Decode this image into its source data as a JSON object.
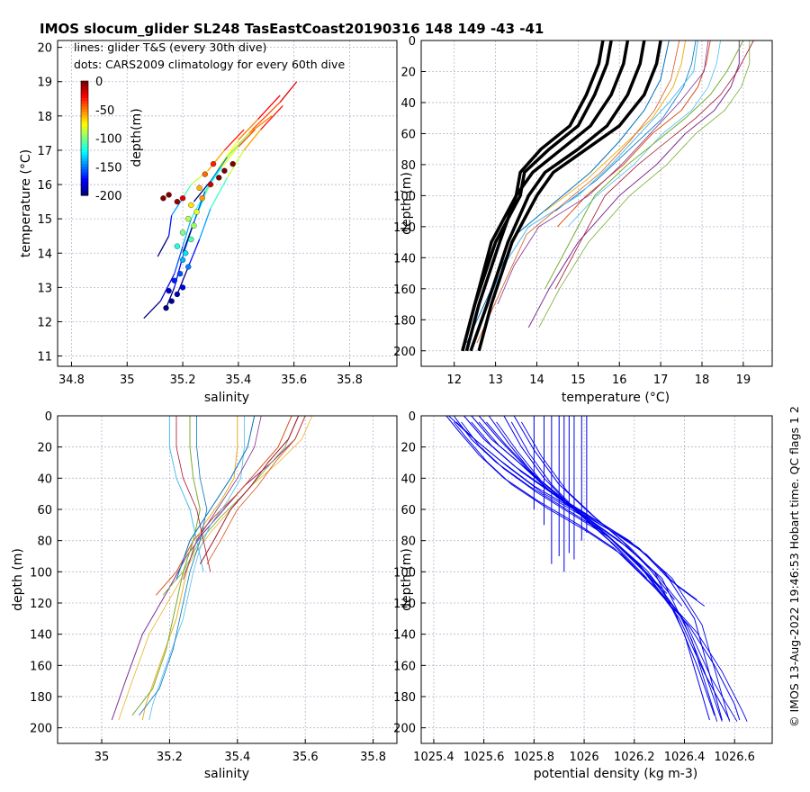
{
  "figure": {
    "title": "IMOS slocum_glider SL248 TasEastCoast20190316 148  149  -43  -41",
    "credit": "© IMOS 13-Aug-2022 19:46:53 Hobart time. QC flags 1  2"
  },
  "chart_data": [
    {
      "id": "ts",
      "type": "line+scatter",
      "xlabel": "salinity",
      "ylabel": "temperature (°C)",
      "xlim": [
        34.75,
        35.97
      ],
      "ylim": [
        10.7,
        20.2
      ],
      "xticks": [
        34.8,
        35,
        35.2,
        35.4,
        35.6,
        35.8
      ],
      "yticks": [
        11,
        12,
        13,
        14,
        15,
        16,
        17,
        18,
        19,
        20
      ],
      "grid": true,
      "annotations": [
        "lines: glider T&S (every 30th dive)",
        "dots: CARS2009 climatology for every 60th dive"
      ],
      "colorbar": {
        "label": "depth(m)",
        "ticks": [
          0,
          -50,
          -100,
          -150,
          -200
        ],
        "range": [
          -200,
          0
        ],
        "colormap": "jet",
        "placement": "upper-left inset"
      },
      "glider_lines": [
        {
          "s": [
            35.06,
            35.12,
            35.17,
            35.2,
            35.23,
            35.27,
            35.31,
            35.37,
            35.45,
            35.55,
            35.61
          ],
          "t": [
            12.1,
            12.6,
            13.4,
            14.2,
            15.0,
            15.6,
            16.2,
            16.9,
            17.6,
            18.4,
            19.0
          ]
        },
        {
          "s": [
            35.14,
            35.17,
            35.2,
            35.24,
            35.28,
            35.33,
            35.4,
            35.47,
            35.55
          ],
          "t": [
            12.4,
            13.0,
            13.9,
            14.9,
            15.7,
            16.5,
            17.3,
            17.9,
            18.6
          ]
        },
        {
          "s": [
            35.11,
            35.15,
            35.16,
            35.2,
            35.23,
            35.29,
            35.35,
            35.42
          ],
          "t": [
            13.9,
            14.5,
            15.1,
            15.6,
            16.0,
            16.4,
            17.0,
            17.6
          ]
        },
        {
          "s": [
            35.18,
            35.22,
            35.26,
            35.3,
            35.36,
            35.42,
            35.48,
            35.56
          ],
          "t": [
            12.8,
            13.6,
            14.4,
            15.3,
            16.2,
            17.0,
            17.6,
            18.3
          ]
        },
        {
          "s": [
            35.2,
            35.24,
            35.28,
            35.34,
            35.4,
            35.46
          ],
          "t": [
            14.0,
            14.9,
            15.8,
            16.5,
            17.1,
            17.6
          ]
        },
        {
          "s": [
            35.24,
            35.3,
            35.36,
            35.44,
            35.52
          ],
          "t": [
            15.5,
            16.1,
            16.8,
            17.5,
            18.0
          ]
        }
      ],
      "cars_dots": [
        {
          "s": 35.14,
          "t": 12.4,
          "d": -200
        },
        {
          "s": 35.16,
          "t": 12.6,
          "d": -195
        },
        {
          "s": 35.18,
          "t": 12.8,
          "d": -190
        },
        {
          "s": 35.15,
          "t": 12.9,
          "d": -185
        },
        {
          "s": 35.2,
          "t": 13.0,
          "d": -180
        },
        {
          "s": 35.17,
          "t": 13.2,
          "d": -170
        },
        {
          "s": 35.19,
          "t": 13.4,
          "d": -160
        },
        {
          "s": 35.22,
          "t": 13.6,
          "d": -150
        },
        {
          "s": 35.2,
          "t": 13.8,
          "d": -140
        },
        {
          "s": 35.21,
          "t": 14.0,
          "d": -130
        },
        {
          "s": 35.18,
          "t": 14.2,
          "d": -120
        },
        {
          "s": 35.23,
          "t": 14.4,
          "d": -110
        },
        {
          "s": 35.2,
          "t": 14.6,
          "d": -100
        },
        {
          "s": 35.24,
          "t": 14.8,
          "d": -95
        },
        {
          "s": 35.22,
          "t": 15.0,
          "d": -90
        },
        {
          "s": 35.25,
          "t": 15.2,
          "d": -80
        },
        {
          "s": 35.23,
          "t": 15.4,
          "d": -70
        },
        {
          "s": 35.27,
          "t": 15.6,
          "d": -55
        },
        {
          "s": 35.2,
          "t": 15.6,
          "d": -20
        },
        {
          "s": 35.15,
          "t": 15.7,
          "d": 0
        },
        {
          "s": 35.13,
          "t": 15.6,
          "d": 0
        },
        {
          "s": 35.18,
          "t": 15.5,
          "d": -5
        },
        {
          "s": 35.3,
          "t": 16.0,
          "d": -15
        },
        {
          "s": 35.33,
          "t": 16.2,
          "d": 0
        },
        {
          "s": 35.35,
          "t": 16.4,
          "d": 0
        },
        {
          "s": 35.38,
          "t": 16.6,
          "d": 0
        },
        {
          "s": 35.31,
          "t": 16.6,
          "d": -30
        },
        {
          "s": 35.28,
          "t": 16.3,
          "d": -45
        },
        {
          "s": 35.26,
          "t": 15.9,
          "d": -60
        }
      ]
    },
    {
      "id": "temp-depth",
      "type": "line",
      "xlabel": "temperature (°C)",
      "ylabel": "depth (m)",
      "xlim": [
        11.2,
        19.7
      ],
      "ylim": [
        0,
        210
      ],
      "y_reversed": true,
      "xticks": [
        12,
        13,
        14,
        15,
        16,
        17,
        18,
        19
      ],
      "yticks": [
        0,
        20,
        40,
        60,
        80,
        100,
        120,
        140,
        160,
        180,
        200
      ],
      "grid": true,
      "glider_profiles": [
        {
          "t": [
            18.9,
            18.9,
            18.7,
            18.3,
            17.6,
            16.9,
            16.0,
            15.0,
            14.3,
            13.8
          ],
          "d": [
            0,
            15,
            30,
            45,
            60,
            80,
            100,
            130,
            160,
            185
          ]
        },
        {
          "t": [
            18.2,
            18.1,
            17.9,
            17.5,
            16.8,
            16.1,
            15.2,
            14.5
          ],
          "d": [
            0,
            15,
            30,
            45,
            60,
            80,
            100,
            120
          ]
        },
        {
          "t": [
            17.6,
            17.5,
            17.3,
            16.8,
            16.0,
            15.2,
            14.2
          ],
          "d": [
            0,
            15,
            30,
            50,
            70,
            90,
            110
          ]
        },
        {
          "t": [
            19.0,
            18.6,
            18.2,
            17.6,
            16.9,
            16.2,
            15.4,
            14.8,
            14.2
          ],
          "d": [
            0,
            20,
            35,
            50,
            65,
            80,
            100,
            130,
            160
          ]
        },
        {
          "t": [
            17.9,
            17.8,
            17.2,
            16.5,
            15.8,
            15.0,
            13.8,
            13.2,
            12.8
          ],
          "d": [
            0,
            20,
            40,
            60,
            80,
            100,
            120,
            145,
            170
          ]
        },
        {
          "t": [
            17.2,
            17.0,
            16.6,
            16.0,
            15.3,
            14.4,
            13.5,
            12.9,
            12.3
          ],
          "d": [
            0,
            25,
            45,
            65,
            85,
            105,
            125,
            160,
            195
          ]
        }
      ],
      "cars_profiles": [
        {
          "t": [
            16.6,
            16.5,
            16.2,
            15.7,
            15.0,
            14.2,
            13.8,
            13.3,
            12.8,
            12.4
          ],
          "d": [
            0,
            15,
            35,
            55,
            70,
            85,
            100,
            130,
            170,
            200
          ]
        },
        {
          "t": [
            16.2,
            16.1,
            15.8,
            15.3,
            14.6,
            13.9,
            13.5,
            13.1,
            12.6,
            12.3
          ],
          "d": [
            0,
            15,
            35,
            55,
            70,
            85,
            100,
            130,
            170,
            200
          ]
        },
        {
          "t": [
            15.8,
            15.7,
            15.4,
            15.0,
            14.3,
            13.7,
            13.6,
            13.0,
            12.5,
            12.2
          ],
          "d": [
            0,
            15,
            35,
            55,
            70,
            85,
            100,
            130,
            170,
            200
          ]
        },
        {
          "t": [
            15.6,
            15.5,
            15.2,
            14.8,
            14.1,
            13.6,
            13.5,
            12.9,
            12.5,
            12.2
          ],
          "d": [
            0,
            15,
            35,
            55,
            70,
            85,
            100,
            130,
            170,
            200
          ]
        },
        {
          "t": [
            17.0,
            16.9,
            16.6,
            16.0,
            15.2,
            14.4,
            14.0,
            13.4,
            12.9,
            12.6
          ],
          "d": [
            0,
            15,
            35,
            55,
            70,
            85,
            100,
            130,
            170,
            200
          ]
        }
      ]
    },
    {
      "id": "sal-depth",
      "type": "line",
      "xlabel": "salinity",
      "ylabel": "depth (m)",
      "xlim": [
        34.87,
        35.87
      ],
      "ylim": [
        0,
        210
      ],
      "y_reversed": true,
      "xticks": [
        35,
        35.2,
        35.4,
        35.6,
        35.8
      ],
      "yticks": [
        0,
        20,
        40,
        60,
        80,
        100,
        120,
        140,
        160,
        180,
        200
      ],
      "grid": true,
      "glider_profiles": [
        {
          "s": [
            35.6,
            35.57,
            35.5,
            35.42,
            35.36,
            35.3,
            35.25,
            35.2,
            35.12,
            35.07,
            35.03
          ],
          "d": [
            0,
            15,
            30,
            45,
            60,
            75,
            90,
            110,
            140,
            170,
            195
          ]
        },
        {
          "s": [
            35.56,
            35.52,
            35.46,
            35.4,
            35.33,
            35.27,
            35.22,
            35.16
          ],
          "d": [
            0,
            20,
            35,
            50,
            65,
            80,
            100,
            115
          ]
        },
        {
          "s": [
            35.4,
            35.4,
            35.39,
            35.35,
            35.3,
            35.27,
            35.25,
            35.22,
            35.17,
            35.13,
            35.12
          ],
          "d": [
            0,
            20,
            40,
            55,
            70,
            85,
            100,
            130,
            160,
            185,
            195
          ]
        },
        {
          "s": [
            35.26,
            35.26,
            35.27,
            35.29,
            35.27,
            35.24,
            35.22,
            35.19,
            35.15,
            35.09
          ],
          "d": [
            0,
            20,
            40,
            60,
            80,
            100,
            120,
            150,
            175,
            192
          ]
        },
        {
          "s": [
            35.2,
            35.2,
            35.22,
            35.26,
            35.28,
            35.3
          ],
          "d": [
            0,
            20,
            40,
            60,
            80,
            100
          ]
        },
        {
          "s": [
            35.45,
            35.43,
            35.38,
            35.32,
            35.26,
            35.22
          ],
          "d": [
            0,
            20,
            40,
            60,
            80,
            105
          ]
        },
        {
          "s": [
            35.58,
            35.55,
            35.49,
            35.44,
            35.38,
            35.33,
            35.29
          ],
          "d": [
            0,
            15,
            30,
            45,
            60,
            80,
            95
          ]
        }
      ]
    },
    {
      "id": "dens-depth",
      "type": "line",
      "xlabel": "potential density (kg m-3)",
      "ylabel": "depth (m)",
      "xlim": [
        1025.35,
        1026.75
      ],
      "ylim": [
        0,
        210
      ],
      "y_reversed": true,
      "xticks": [
        1025.4,
        1025.6,
        1025.8,
        1026,
        1026.2,
        1026.4,
        1026.6
      ],
      "xticklabels": [
        "1025.4",
        "1025.6",
        "1025.8",
        "1026",
        "1026.2",
        "1026.4",
        "1026.6"
      ],
      "yticks": [
        0,
        20,
        40,
        60,
        80,
        100,
        120,
        140,
        160,
        180,
        200
      ],
      "grid": true,
      "series_color": "#0000ee",
      "profiles": [
        {
          "rho": [
            1025.45,
            1025.5,
            1025.58,
            1025.68,
            1025.82,
            1025.98,
            1026.12,
            1026.28,
            1026.42,
            1026.52,
            1026.6,
            1026.62
          ],
          "d": [
            0,
            10,
            25,
            40,
            55,
            70,
            85,
            110,
            135,
            160,
            185,
            195
          ]
        },
        {
          "rho": [
            1025.48,
            1025.55,
            1025.65,
            1025.78,
            1025.93,
            1026.08,
            1026.22,
            1026.36,
            1026.45,
            1026.52
          ],
          "d": [
            0,
            15,
            30,
            45,
            60,
            75,
            95,
            125,
            160,
            192
          ]
        },
        {
          "rho": [
            1025.52,
            1025.6,
            1025.72,
            1025.88,
            1026.03,
            1026.18,
            1026.32,
            1026.44,
            1026.55
          ],
          "d": [
            0,
            15,
            32,
            50,
            65,
            80,
            100,
            130,
            195
          ]
        },
        {
          "rho": [
            1025.58,
            1025.66,
            1025.78,
            1025.92,
            1026.08,
            1026.22,
            1026.34,
            1026.45
          ],
          "d": [
            0,
            15,
            35,
            55,
            70,
            85,
            105,
            118
          ]
        },
        {
          "rho": [
            1025.46,
            1025.54,
            1025.66,
            1025.8,
            1025.96,
            1026.1,
            1026.24,
            1026.38,
            1026.48,
            1026.58
          ],
          "d": [
            0,
            12,
            28,
            45,
            60,
            78,
            100,
            130,
            165,
            195
          ]
        },
        {
          "rho": [
            1025.62,
            1025.7,
            1025.8,
            1025.93,
            1026.06,
            1026.18,
            1026.3
          ],
          "d": [
            0,
            18,
            38,
            55,
            72,
            90,
            110
          ]
        },
        {
          "rho": [
            1025.55,
            1025.63,
            1025.74,
            1025.86,
            1026.0,
            1026.14,
            1026.28,
            1026.4,
            1026.5
          ],
          "d": [
            0,
            15,
            30,
            48,
            64,
            80,
            100,
            140,
            195
          ]
        },
        {
          "rho": [
            1025.68,
            1025.75,
            1025.84,
            1025.96,
            1026.1,
            1026.22
          ],
          "d": [
            0,
            20,
            40,
            60,
            80,
            100
          ]
        },
        {
          "rho": [
            1025.72,
            1025.8,
            1025.9,
            1026.02,
            1026.15,
            1026.26,
            1026.36
          ],
          "d": [
            0,
            22,
            44,
            62,
            80,
            98,
            118
          ]
        }
      ],
      "verticals": [
        {
          "rho": 1025.87,
          "d": [
            0,
            95
          ]
        },
        {
          "rho": 1025.9,
          "d": [
            0,
            90
          ]
        },
        {
          "rho": 1025.92,
          "d": [
            0,
            100
          ]
        },
        {
          "rho": 1025.94,
          "d": [
            0,
            88
          ]
        },
        {
          "rho": 1025.96,
          "d": [
            0,
            92
          ]
        },
        {
          "rho": 1025.99,
          "d": [
            0,
            80
          ]
        },
        {
          "rho": 1026.01,
          "d": [
            0,
            75
          ]
        },
        {
          "rho": 1025.84,
          "d": [
            0,
            70
          ]
        },
        {
          "rho": 1025.8,
          "d": [
            0,
            60
          ]
        }
      ]
    }
  ]
}
